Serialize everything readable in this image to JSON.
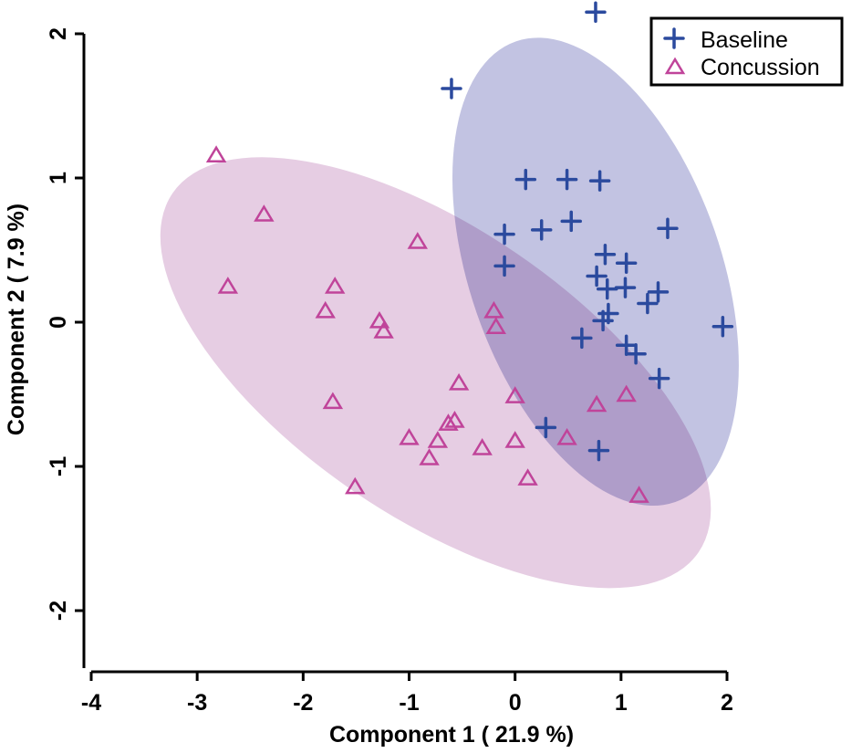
{
  "chart_data": {
    "type": "scatter",
    "title": "",
    "xlabel": "Component 1 ( 21.9 %)",
    "ylabel": "Component 2 ( 7.9 %)",
    "xlim": [
      -4,
      2
    ],
    "ylim": [
      -2,
      2
    ],
    "xticks": [
      "-4",
      "-3",
      "-2",
      "-1",
      "0",
      "1",
      "2"
    ],
    "yticks": [
      "-2",
      "-1",
      "0",
      "1",
      "2"
    ],
    "grid": false,
    "legend_position": "top-right",
    "series": [
      {
        "name": "Baseline",
        "marker": "plus",
        "color": "#2b4a9e",
        "ellipse_color": "#c2c3e2",
        "ellipse_center": [
          0.76,
          0.35
        ],
        "points": [
          [
            0.76,
            2.15
          ],
          [
            -0.6,
            1.62
          ],
          [
            0.1,
            0.99
          ],
          [
            0.49,
            0.99
          ],
          [
            0.8,
            0.98
          ],
          [
            0.53,
            0.7
          ],
          [
            -0.1,
            0.61
          ],
          [
            0.25,
            0.64
          ],
          [
            1.44,
            0.65
          ],
          [
            -0.1,
            0.39
          ],
          [
            0.85,
            0.47
          ],
          [
            1.05,
            0.41
          ],
          [
            0.77,
            0.32
          ],
          [
            0.87,
            0.23
          ],
          [
            1.04,
            0.24
          ],
          [
            1.35,
            0.21
          ],
          [
            1.25,
            0.13
          ],
          [
            0.88,
            0.06
          ],
          [
            0.83,
            0.01
          ],
          [
            1.96,
            -0.03
          ],
          [
            0.63,
            -0.11
          ],
          [
            1.05,
            -0.16
          ],
          [
            1.14,
            -0.22
          ],
          [
            1.36,
            -0.39
          ],
          [
            0.29,
            -0.73
          ],
          [
            0.79,
            -0.89
          ]
        ]
      },
      {
        "name": "Concussion",
        "marker": "triangle",
        "color": "#c0449a",
        "ellipse_color": "#e6cde3",
        "ellipse_center": [
          -0.75,
          -0.35
        ],
        "points": [
          [
            -2.82,
            1.16
          ],
          [
            -2.37,
            0.75
          ],
          [
            -0.92,
            0.56
          ],
          [
            -2.71,
            0.25
          ],
          [
            -1.7,
            0.25
          ],
          [
            -1.79,
            0.08
          ],
          [
            -1.28,
            0.01
          ],
          [
            -1.24,
            -0.06
          ],
          [
            -0.2,
            0.08
          ],
          [
            -0.18,
            -0.03
          ],
          [
            -0.53,
            -0.42
          ],
          [
            0.0,
            -0.51
          ],
          [
            -1.72,
            -0.55
          ],
          [
            -0.63,
            -0.7
          ],
          [
            -0.57,
            -0.68
          ],
          [
            -1.0,
            -0.8
          ],
          [
            -0.73,
            -0.82
          ],
          [
            -0.31,
            -0.87
          ],
          [
            0.0,
            -0.82
          ],
          [
            -0.81,
            -0.94
          ],
          [
            0.12,
            -1.08
          ],
          [
            -1.51,
            -1.14
          ],
          [
            1.05,
            -0.5
          ],
          [
            0.77,
            -0.57
          ],
          [
            0.49,
            -0.8
          ],
          [
            1.17,
            -1.2
          ]
        ]
      }
    ]
  }
}
